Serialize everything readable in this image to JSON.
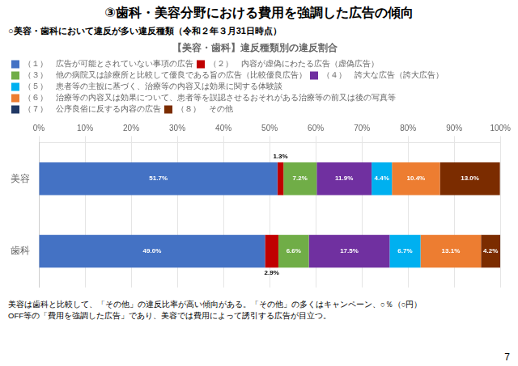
{
  "chart_data": {
    "type": "bar",
    "orientation": "horizontal",
    "stacked": true,
    "title": "③歯科・美容分野における費用を強調した広告の傾向",
    "subtitle": "○美容・歯科において違反が多い違反種類（令和２年３月31日時点）",
    "chart_title": "【美容・歯科】違反種類別の違反割合",
    "categories": [
      "美容",
      "歯科"
    ],
    "series": [
      {
        "name": "（１）　広告が可能とされていない事項の広告",
        "color": "#4472c4",
        "values": [
          51.7,
          49.0
        ],
        "value_labels": [
          "51.7%",
          "49.0%"
        ]
      },
      {
        "name": "（２）　内容が虚偽にわたる広告（虚偽広告）",
        "color": "#c00000",
        "values": [
          1.3,
          2.9
        ],
        "value_labels": [
          "1.3%",
          "2.9%"
        ]
      },
      {
        "name": "（３）　他の病院又は診療所と比較して優良である旨の広告（比較優良広告）",
        "color": "#70ad47",
        "values": [
          7.2,
          6.6
        ],
        "value_labels": [
          "7.2%",
          "6.6%"
        ]
      },
      {
        "name": "（４）　誇大な広告（誇大広告）",
        "color": "#7030a0",
        "values": [
          11.9,
          17.5
        ],
        "value_labels": [
          "11.9%",
          "17.5%"
        ]
      },
      {
        "name": "（５）　患者等の主観に基づく、治療等の内容又は効果に関する体験談",
        "color": "#00b0f0",
        "values": [
          4.4,
          6.7
        ],
        "value_labels": [
          "4.4%",
          "6.7%"
        ]
      },
      {
        "name": "（６）　治療等の内容又は効果について、患者等を誤認させるおそれがある治療等の前又は後の写真等",
        "color": "#ed7d31",
        "values": [
          10.4,
          13.1
        ],
        "value_labels": [
          "10.4%",
          "13.1%"
        ]
      },
      {
        "name": "（７）　公序良俗に反する内容の広告",
        "color": "#203864",
        "values": [
          0.0,
          0.0
        ],
        "value_labels": [
          null,
          null
        ]
      },
      {
        "name": "（８）　その他",
        "color": "#7b2c00",
        "values": [
          13.0,
          4.2
        ],
        "value_labels": [
          "13.0%",
          "4.2%"
        ]
      }
    ],
    "xlim": [
      0,
      100
    ],
    "xticks": [
      {
        "value": 0,
        "label": "0%"
      },
      {
        "value": 10,
        "label": "10%"
      },
      {
        "value": 20,
        "label": "20%"
      },
      {
        "value": 30,
        "label": "30%"
      },
      {
        "value": 40,
        "label": "40%"
      },
      {
        "value": 50,
        "label": "50%"
      },
      {
        "value": 60,
        "label": "60%"
      },
      {
        "value": 70,
        "label": "70%"
      },
      {
        "value": 80,
        "label": "80%"
      },
      {
        "value": 90,
        "label": "90%"
      },
      {
        "value": 100,
        "label": "100%"
      }
    ],
    "grid": true,
    "legend": "top",
    "data_labels": true,
    "footnotes": [
      "美容は歯科と比較して、「その他」の違反比率が高い傾向がある。「その他」の多くはキャンペーン、○％（○円）",
      "OFF等の「費用を強調した広告」であり、美容では費用によって誘引する広告が目立つ。"
    ],
    "page_number": "7"
  }
}
